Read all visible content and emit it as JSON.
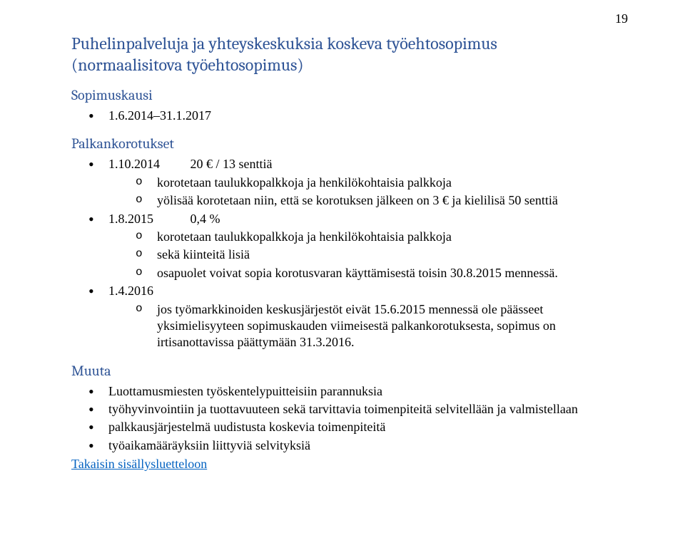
{
  "page_number": "19",
  "headings": {
    "title_line1": "Puhelinpalveluja ja yhteyskeskuksia koskeva työehtosopimus",
    "title_line2": "(normaalisitova työehtosopimus)",
    "sopimuskausi": "Sopimuskausi",
    "palkankorotukset": "Palkankorotukset",
    "muuta": "Muuta"
  },
  "sopimuskausi_item": "1.6.2014–31.1.2017",
  "palkankorotukset": [
    {
      "date": "1.10.2014",
      "amount": "20 € / 13 senttiä",
      "sub": [
        "korotetaan taulukkopalkkoja ja henkilökohtaisia palkkoja",
        "yölisää korotetaan niin, että se korotuksen jälkeen on 3 € ja kielilisä 50 senttiä"
      ]
    },
    {
      "date": "1.8.2015",
      "amount": "0,4 %",
      "sub": [
        "korotetaan taulukkopalkkoja ja henkilökohtaisia palkkoja",
        "sekä kiinteitä lisiä",
        "osapuolet voivat sopia korotusvaran käyttämisestä toisin 30.8.2015 mennessä."
      ]
    },
    {
      "date": "1.4.2016",
      "amount": "",
      "sub": [
        "jos työmarkkinoiden keskusjärjestöt eivät 15.6.2015 mennessä ole päässeet yksimielisyyteen sopimuskauden viimeisestä palkankorotuksesta, sopimus on irtisanottavissa päättymään 31.3.2016."
      ]
    }
  ],
  "muuta": [
    "Luottamusmiesten työskentelypuitteisiin parannuksia",
    "työhyvinvointiin ja tuottavuuteen sekä tarvittavia toimenpiteitä selvitellään ja valmistellaan",
    "palkkausjärjestelmä uudistusta koskevia toimenpiteitä",
    "työaikamääräyksiin liittyviä selvityksiä"
  ],
  "back_link": "Takaisin sisällysluetteloon",
  "colors": {
    "heading": "#2f5496",
    "link": "#0563c1",
    "text": "#000000",
    "background": "#ffffff"
  }
}
